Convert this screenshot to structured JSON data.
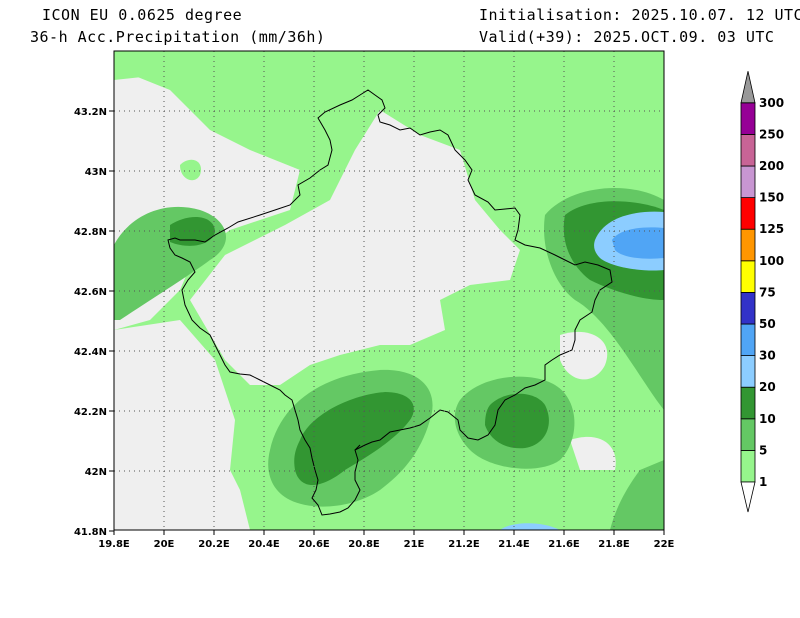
{
  "header": {
    "model": "ICON EU 0.0625 degree",
    "field": "36-h Acc.Precipitation (mm/36h)",
    "init": "Initialisation: 2025.10.07. 12 UTC",
    "valid": "Valid(+39): 2025.OCT.09. 03 UTC"
  },
  "axes": {
    "lon_labels": [
      "19.8E",
      "20E",
      "20.2E",
      "20.4E",
      "20.6E",
      "20.8E",
      "21E",
      "21.2E",
      "21.4E",
      "21.6E",
      "21.8E",
      "22E"
    ],
    "lat_labels": [
      "43.2N",
      "43N",
      "42.8N",
      "42.6N",
      "42.4N",
      "42.2N",
      "42N",
      "41.8N"
    ]
  },
  "colorbar": {
    "levels": [
      {
        "label": "1",
        "color": "#96f58c"
      },
      {
        "label": "5",
        "color": "#64c864"
      },
      {
        "label": "10",
        "color": "#329632"
      },
      {
        "label": "20",
        "color": "#8ccdff"
      },
      {
        "label": "30",
        "color": "#50a5f5"
      },
      {
        "label": "50",
        "color": "#3232c8"
      },
      {
        "label": "75",
        "color": "#ffff00"
      },
      {
        "label": "100",
        "color": "#ff9600"
      },
      {
        "label": "125",
        "color": "#ff0000"
      },
      {
        "label": "150",
        "color": "#c896d2"
      },
      {
        "label": "200",
        "color": "#c86496"
      },
      {
        "label": "250",
        "color": "#960096"
      },
      {
        "label": "300",
        "color": "#999999"
      }
    ]
  },
  "colors": {
    "no_precip": "#efefef",
    "border": "#000000",
    "grid": "#555555"
  }
}
